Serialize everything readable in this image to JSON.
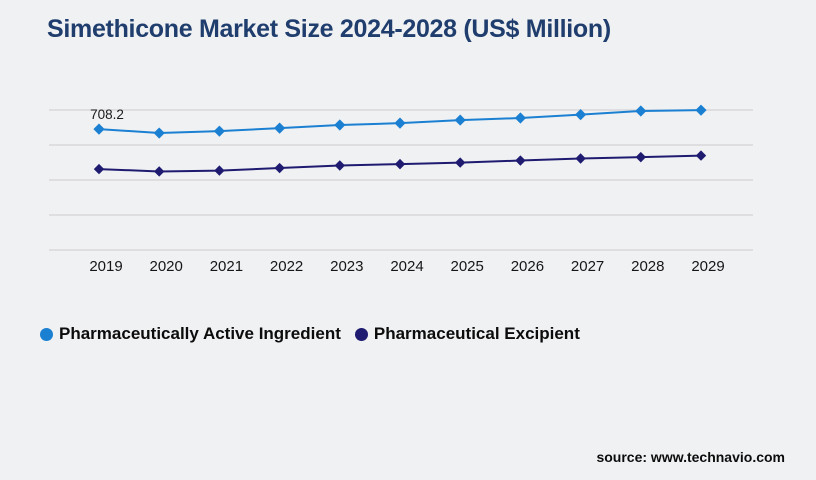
{
  "header": {
    "title": "Simethicone Market Size 2024-2028 (US$ Million)"
  },
  "footer": {
    "source_label": "source: www.technavio.com"
  },
  "colors": {
    "background": "#f0f1f3",
    "title": "#1f3d6d",
    "gridline": "#d2d2d6",
    "tick_label": "#161616",
    "data_label": "#1a1a1a",
    "series_active": "#1b80d2",
    "series_excipient": "#1e1b70"
  },
  "chart_data": {
    "type": "line",
    "title": "Simethicone Market Size 2024-2028 (US$ Million)",
    "categories": [
      "2019",
      "2020",
      "2021",
      "2022",
      "2023",
      "2024",
      "2025",
      "2026",
      "2027",
      "2028",
      "2029"
    ],
    "series": [
      {
        "name": "Pharmaceutically Active Ingredient",
        "color": "#1b80d2",
        "marker": "diamond",
        "values": [
          708.2,
          685,
          696,
          714,
          732,
          743,
          761,
          773,
          793,
          814,
          819
        ]
      },
      {
        "name": "Pharmaceutical Excipient",
        "color": "#1e1b70",
        "marker": "diamond",
        "values": [
          474,
          460,
          465,
          480,
          495,
          503,
          512,
          524,
          536,
          544,
          553
        ]
      }
    ],
    "data_labels": [
      {
        "series": 0,
        "index": 0,
        "text": "708.2"
      }
    ],
    "xlabel": "",
    "ylabel": "",
    "ylim": [
      0,
      820
    ],
    "grid": true,
    "gridline_count": 5,
    "y_axis_labels_visible": false,
    "legend_position": "bottom"
  }
}
